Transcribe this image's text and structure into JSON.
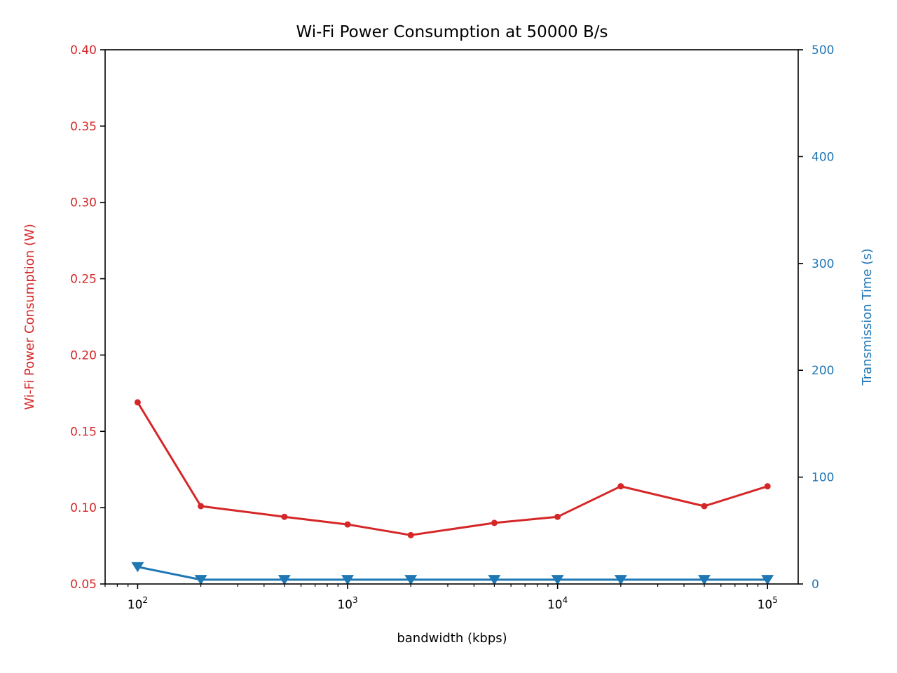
{
  "chart_data": {
    "type": "line",
    "title": "Wi-Fi Power Consumption at 50000 B/s",
    "xlabel": "bandwidth (kbps)",
    "ylabel_left": "Wi-Fi Power Consumption (W)",
    "ylabel_right": "Transmission Time (s)",
    "x_scale": "log",
    "xlim": [
      70,
      140000
    ],
    "x_major_ticks": [
      {
        "value": 100,
        "base": "10",
        "exp": "2"
      },
      {
        "value": 1000,
        "base": "10",
        "exp": "3"
      },
      {
        "value": 10000,
        "base": "10",
        "exp": "4"
      },
      {
        "value": 100000,
        "base": "10",
        "exp": "5"
      }
    ],
    "ylim_left": [
      0.05,
      0.4
    ],
    "y_left_ticks": [
      "0.05",
      "0.10",
      "0.15",
      "0.20",
      "0.25",
      "0.30",
      "0.35",
      "0.40"
    ],
    "ylim_right": [
      0,
      500
    ],
    "y_right_ticks": [
      "0",
      "100",
      "200",
      "300",
      "400",
      "500"
    ],
    "grid": false,
    "colors": {
      "left": "#d62728",
      "right": "#1f77b4"
    },
    "x": [
      100,
      200,
      500,
      1000,
      2000,
      5000,
      10000,
      20000,
      50000,
      100000
    ],
    "series": [
      {
        "axis": "left",
        "marker": "circle",
        "values": [
          0.169,
          0.101,
          0.094,
          0.089,
          0.082,
          0.09,
          0.094,
          0.114,
          0.101,
          0.114
        ]
      },
      {
        "axis": "right",
        "marker": "triangle-down",
        "values": [
          16,
          4,
          4,
          4,
          4,
          4,
          4,
          4,
          4,
          4
        ]
      }
    ]
  }
}
